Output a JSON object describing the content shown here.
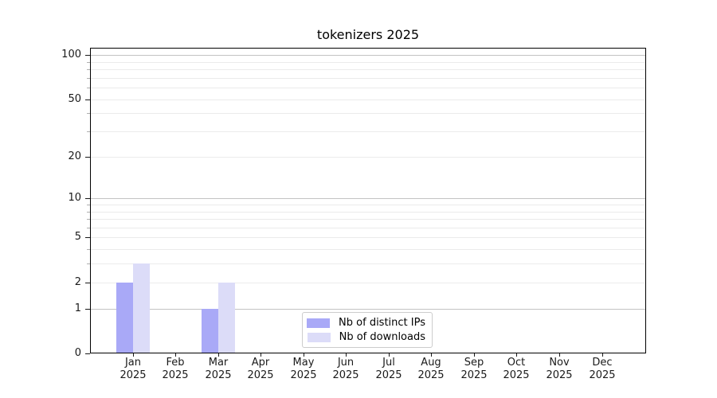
{
  "title": "tokenizers 2025",
  "chart_data": {
    "type": "bar",
    "title": "tokenizers 2025",
    "categories": [
      "Jan 2025",
      "Feb 2025",
      "Mar 2025",
      "Apr 2025",
      "May 2025",
      "Jun 2025",
      "Jul 2025",
      "Aug 2025",
      "Sep 2025",
      "Oct 2025",
      "Nov 2025",
      "Dec 2025"
    ],
    "series": [
      {
        "name": "Nb of distinct IPs",
        "color": "#a9a9f7",
        "values": [
          2,
          0,
          1,
          0,
          0,
          0,
          0,
          0,
          0,
          0,
          0,
          0
        ]
      },
      {
        "name": "Nb of downloads",
        "color": "#dcdcf8",
        "values": [
          3,
          0,
          2,
          0,
          0,
          0,
          0,
          0,
          0,
          0,
          0,
          0
        ]
      }
    ],
    "xlabel": "",
    "ylabel": "",
    "yscale": "log1p",
    "ylim": [
      0,
      112
    ],
    "yticks_labeled": [
      0,
      1,
      2,
      5,
      10,
      20,
      50,
      100
    ],
    "yticks_minor": [
      3,
      4,
      6,
      7,
      8,
      9,
      30,
      40,
      60,
      70,
      80,
      90
    ],
    "gridlines_major": [
      1,
      10,
      100
    ],
    "gridlines_minor": [
      2,
      3,
      4,
      5,
      6,
      7,
      8,
      9,
      20,
      30,
      40,
      50,
      60,
      70,
      80,
      90
    ],
    "grid": "horizontal",
    "legend_position": "lower center"
  },
  "colors": {
    "series_distinct_ips": "#a9a9f7",
    "series_downloads": "#dcdcf8",
    "grid_major": "#c3c3c3",
    "grid_minor": "#ebebeb",
    "axis_line": "#000000",
    "legend_border": "#cccccc"
  }
}
